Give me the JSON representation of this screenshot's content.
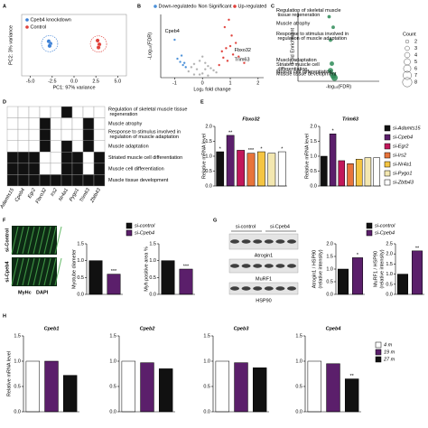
{
  "chart_data": [
    {
      "type": "scatter",
      "panel": "A",
      "xlabel": "PC1: 97% variance",
      "ylabel": "PC2: 3% variance",
      "xlim": [
        -6,
        6
      ],
      "xticks": [
        {
          "value": -5,
          "label": "-5.0"
        },
        {
          "value": -2.5,
          "label": "-2.5"
        },
        {
          "value": 0,
          "label": "0.0"
        },
        {
          "value": 2.5,
          "label": "2.5"
        },
        {
          "value": 5,
          "label": "5.0"
        }
      ],
      "ylim": [
        -4,
        4
      ],
      "series": [
        {
          "name": "Cpeb4 knockdown",
          "color": "#3a7fd5",
          "x": [
            -2.9,
            -2.7,
            -2.8
          ],
          "values": [
            0.5,
            0.2,
            -0.1
          ]
        },
        {
          "name": "Control",
          "color": "#e0403a",
          "x": [
            2.7,
            2.9,
            2.8
          ],
          "values": [
            0.6,
            0.1,
            -0.3
          ]
        }
      ]
    },
    {
      "type": "scatter",
      "panel": "B",
      "xlabel": "Log₂ fold change",
      "ylabel": "-Log₁₀(FDR)",
      "xlim": [
        -1.5,
        2.2
      ],
      "xticks": [
        -1,
        0,
        1,
        2
      ],
      "ylim": [
        0,
        6
      ],
      "series": [
        {
          "name": "Down-regulated",
          "color": "#4a90d9",
          "x": [
            -1.0,
            -0.9,
            -0.8,
            -0.7,
            -0.75,
            -0.65,
            -0.6
          ],
          "values": [
            3.6,
            1.8,
            1.5,
            1.2,
            2.1,
            1.4,
            1.0
          ]
        },
        {
          "name": "Non Significant",
          "color": "#b0b0b0",
          "x": [
            -0.5,
            -0.4,
            -0.3,
            -0.2,
            -0.1,
            0,
            0.1,
            0.2,
            0.3,
            0.4,
            0.5,
            -0.3,
            0,
            0.2,
            0.1,
            -0.1
          ],
          "values": [
            0.6,
            1.0,
            1.3,
            0.8,
            1.6,
            2.0,
            1.4,
            1.1,
            0.9,
            0.7,
            0.5,
            0.3,
            0.4,
            0.2,
            0.8,
            0.3
          ]
        },
        {
          "name": "Up-regulated",
          "color": "#e0403a",
          "x": [
            0.6,
            0.7,
            0.8,
            0.9,
            1.0,
            1.1,
            1.2,
            0.75,
            0.95,
            1.3,
            1.5,
            0.85,
            1.05
          ],
          "values": [
            1.2,
            2.5,
            4.8,
            1.6,
            3.0,
            2.2,
            3.3,
            1.9,
            5.5,
            2.0,
            1.4,
            2.8,
            4.0
          ]
        }
      ],
      "annotations": [
        {
          "text": "Cpeb4",
          "x": -1.35,
          "y": 4.4
        },
        {
          "text": "Fbxo32",
          "x": 1.15,
          "y": 2.6
        },
        {
          "text": "Trim63",
          "x": 1.15,
          "y": 1.7
        }
      ]
    },
    {
      "type": "bubble",
      "panel": "C",
      "xlabel": "-log₁₀(FDR)",
      "ylabel": "Fold Enrichment",
      "xlim": [
        0,
        6
      ],
      "ylim": [
        0,
        60
      ],
      "color": "#2e8b57",
      "labels": [
        "Regulation of skeletal muscle tissue regeneration",
        "Muscle atrophy",
        "Response to stimulus involved in regulation of muscle adaptation",
        "Muscle adaptation",
        "Striated muscle cell differentiation",
        "Muscle cell differentiation",
        "Muscle tissue development"
      ],
      "x": [
        2.3,
        2.6,
        2.4,
        2.5,
        2.4,
        2.6,
        2.7
      ],
      "values": [
        55,
        46,
        35,
        15,
        9,
        5,
        3
      ],
      "sizes": [
        2,
        2,
        2,
        3,
        4,
        5,
        5
      ],
      "legend_title": "Count",
      "size_legend": [
        2,
        3,
        4,
        5,
        6,
        7,
        8
      ]
    },
    {
      "type": "matrix",
      "panel": "D",
      "categories": [
        "Adamts15",
        "Cpeb4",
        "Egr2",
        "Fbxo32",
        "Irs2",
        "Nr4a1",
        "Pygo1",
        "Trim63",
        "Zbtb43"
      ],
      "highlight": [
        3,
        7
      ],
      "highlight_color": "#d62728",
      "values": [
        [
          0,
          0,
          0,
          0,
          0,
          1,
          0,
          0,
          0
        ],
        [
          0,
          0,
          0,
          1,
          0,
          0,
          0,
          1,
          0
        ],
        [
          0,
          0,
          0,
          1,
          0,
          0,
          0,
          1,
          0
        ],
        [
          0,
          0,
          0,
          1,
          0,
          1,
          0,
          1,
          0
        ],
        [
          1,
          1,
          1,
          0,
          0,
          1,
          1,
          0,
          1
        ],
        [
          1,
          1,
          1,
          0,
          0,
          1,
          1,
          0,
          1
        ],
        [
          1,
          1,
          1,
          1,
          1,
          1,
          1,
          1,
          1
        ]
      ]
    },
    {
      "type": "bar",
      "panel": "E",
      "title": "Fbxo32",
      "ylabel": "Relative mRNA level",
      "categories": [
        "si-Adamts15",
        "si-Cpeb4",
        "si-Egr2",
        "si-Irs2",
        "si-Nr4a1",
        "si-Pygo1",
        "si-Zbtb43"
      ],
      "colors": [
        "#111111",
        "#5b1f6b",
        "#c2185b",
        "#e8743b",
        "#f5c542",
        "#f3e7b0",
        "#ffffff"
      ],
      "values": [
        1.15,
        1.7,
        1.2,
        1.1,
        1.15,
        1.1,
        1.15
      ],
      "ylim": [
        0,
        2
      ],
      "yticks": [
        {
          "value": 0,
          "label": "0.0"
        },
        {
          "value": 0.5,
          "label": "0.5"
        },
        {
          "value": 1,
          "label": "1.0"
        },
        {
          "value": 1.5,
          "label": "1.5"
        },
        {
          "value": 2,
          "label": "2.0"
        }
      ],
      "annotations": [
        {
          "index": 0,
          "text": "*"
        },
        {
          "index": 1,
          "text": "**"
        },
        {
          "index": 3,
          "text": "***"
        },
        {
          "index": 4,
          "text": "*"
        },
        {
          "index": 6,
          "text": "*"
        }
      ]
    },
    {
      "type": "bar",
      "title": "Trim63",
      "ylabel": "Relative mRNA level",
      "colors": [
        "#111111",
        "#5b1f6b",
        "#c2185b",
        "#e8743b",
        "#f5c542",
        "#f3e7b0",
        "#ffffff"
      ],
      "values": [
        1.0,
        1.75,
        0.85,
        0.75,
        0.9,
        0.95,
        0.95
      ],
      "ylim": [
        0,
        2
      ],
      "yticks": [
        {
          "value": 0,
          "label": "0.0"
        },
        {
          "value": 0.5,
          "label": "0.5"
        },
        {
          "value": 1,
          "label": "1.0"
        },
        {
          "value": 1.5,
          "label": "1.5"
        },
        {
          "value": 2,
          "label": "2.0"
        }
      ],
      "annotations": [
        {
          "index": 1,
          "text": "*"
        }
      ]
    },
    {
      "type": "bar",
      "panel": "F",
      "ylabel": "Myotube diameter",
      "categories": [
        "si-control",
        "si-Cpeb4"
      ],
      "colors": [
        "#111111",
        "#5b1f6b"
      ],
      "values": [
        1.0,
        0.6
      ],
      "ylim": [
        0,
        1.5
      ],
      "yticks": [
        {
          "value": 0,
          "label": "0.0"
        },
        {
          "value": 0.5,
          "label": "0.5"
        },
        {
          "value": 1,
          "label": "1.0"
        },
        {
          "value": 1.5,
          "label": "1.5"
        }
      ],
      "annotations": [
        {
          "index": 1,
          "text": "***"
        }
      ],
      "image_labels": [
        "si-Control",
        "si-Cpeb4"
      ],
      "stain_labels": [
        {
          "text": "MyHc",
          "color": "#4caf50"
        },
        {
          "text": "DAPI",
          "color": "#3f6fd8"
        }
      ]
    },
    {
      "type": "bar",
      "ylabel": "Myh positive area %",
      "colors": [
        "#111111",
        "#5b1f6b"
      ],
      "values": [
        1.0,
        0.75
      ],
      "ylim": [
        0,
        1.5
      ],
      "yticks": [
        {
          "value": 0,
          "label": "0.0"
        },
        {
          "value": 0.5,
          "label": "0.5"
        },
        {
          "value": 1,
          "label": "1.0"
        },
        {
          "value": 1.5,
          "label": "1.5"
        }
      ],
      "annotations": [
        {
          "index": 1,
          "text": "***"
        }
      ]
    },
    {
      "type": "bar",
      "panel": "G",
      "ylabel": [
        "Atrogin1 / HSP90",
        "(relative intensity)"
      ],
      "categories": [
        "si-control",
        "si-Cpeb4"
      ],
      "colors": [
        "#111111",
        "#5b1f6b"
      ],
      "values": [
        1.0,
        1.45
      ],
      "ylim": [
        0,
        2
      ],
      "yticks": [
        {
          "value": 0,
          "label": "0.0"
        },
        {
          "value": 0.5,
          "label": "0.5"
        },
        {
          "value": 1,
          "label": "1.0"
        },
        {
          "value": 1.5,
          "label": "1.5"
        },
        {
          "value": 2,
          "label": "2.0"
        }
      ],
      "annotations": [
        {
          "index": 1,
          "text": "*"
        }
      ],
      "blot_labels": [
        "Atrogin1",
        "MuRF1",
        "HSP90"
      ]
    },
    {
      "type": "bar",
      "ylabel": [
        "MuRF1 / HSP90",
        "(relative intensity)"
      ],
      "colors": [
        "#111111",
        "#5b1f6b"
      ],
      "values": [
        1.0,
        2.15
      ],
      "ylim": [
        0,
        2.5
      ],
      "yticks": [
        {
          "value": 0,
          "label": "0.0"
        },
        {
          "value": 0.5,
          "label": "0.5"
        },
        {
          "value": 1,
          "label": "1.0"
        },
        {
          "value": 1.5,
          "label": "1.5"
        },
        {
          "value": 2,
          "label": "2.0"
        },
        {
          "value": 2.5,
          "label": "2.5"
        }
      ],
      "annotations": [
        {
          "index": 1,
          "text": "**"
        }
      ]
    },
    {
      "type": "bar",
      "panel": "H",
      "title": "Cpeb1",
      "ylabel": "Relative mRNA level",
      "categories": [
        "4 m",
        "19 m",
        "27 m"
      ],
      "colors": [
        "#ffffff",
        "#5b1f6b",
        "#111111"
      ],
      "values": [
        1.0,
        1.0,
        0.72
      ],
      "ylim": [
        0,
        1.5
      ],
      "yticks": [
        {
          "value": 0,
          "label": "0.0"
        },
        {
          "value": 0.5,
          "label": "0.5"
        },
        {
          "value": 1,
          "label": "1.0"
        },
        {
          "value": 1.5,
          "label": "1.5"
        }
      ]
    },
    {
      "type": "bar",
      "title": "Cpeb2",
      "colors": [
        "#ffffff",
        "#5b1f6b",
        "#111111"
      ],
      "values": [
        1.0,
        0.97,
        0.85
      ],
      "ylim": [
        0,
        1.5
      ],
      "yticks": [
        {
          "value": 0,
          "label": "0.0"
        },
        {
          "value": 0.5,
          "label": "0.5"
        },
        {
          "value": 1,
          "label": "1.0"
        },
        {
          "value": 1.5,
          "label": "1.5"
        }
      ]
    },
    {
      "type": "bar",
      "title": "Cpeb3",
      "colors": [
        "#ffffff",
        "#5b1f6b",
        "#111111"
      ],
      "values": [
        1.0,
        0.97,
        0.87
      ],
      "ylim": [
        0,
        1.5
      ],
      "yticks": [
        {
          "value": 0,
          "label": "0.0"
        },
        {
          "value": 0.5,
          "label": "0.5"
        },
        {
          "value": 1,
          "label": "1.0"
        },
        {
          "value": 1.5,
          "label": "1.5"
        }
      ]
    },
    {
      "type": "bar",
      "title": "Cpeb4",
      "colors": [
        "#ffffff",
        "#5b1f6b",
        "#111111"
      ],
      "values": [
        1.0,
        0.95,
        0.65
      ],
      "ylim": [
        0,
        1.5
      ],
      "yticks": [
        {
          "value": 0,
          "label": "0.0"
        },
        {
          "value": 0.5,
          "label": "0.5"
        },
        {
          "value": 1,
          "label": "1.0"
        },
        {
          "value": 1.5,
          "label": "1.5"
        }
      ],
      "annotations": [
        {
          "index": 2,
          "text": "**"
        }
      ]
    }
  ]
}
